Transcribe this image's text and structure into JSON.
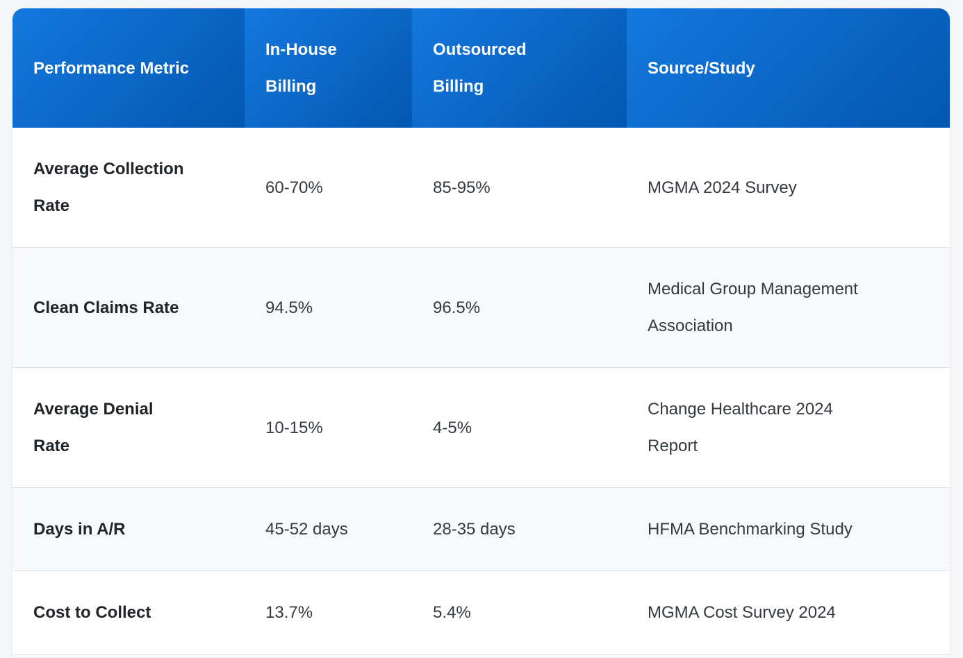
{
  "table": {
    "columns": [
      {
        "label": "Performance Metric"
      },
      {
        "label": "In-House\nBilling"
      },
      {
        "label": "Outsourced\nBilling"
      },
      {
        "label": "Source/Study"
      }
    ],
    "rows": [
      {
        "metric": "Average Collection\nRate",
        "in_house": "60-70%",
        "outsourced": "85-95%",
        "source": "MGMA 2024 Survey"
      },
      {
        "metric": "Clean Claims Rate",
        "in_house": "94.5%",
        "outsourced": "96.5%",
        "source": "Medical Group Management\nAssociation"
      },
      {
        "metric": "Average Denial\nRate",
        "in_house": "10-15%",
        "outsourced": "4-5%",
        "source": "Change Healthcare 2024\nReport"
      },
      {
        "metric": "Days in A/R",
        "in_house": "45-52 days",
        "outsourced": "28-35 days",
        "source": "HFMA Benchmarking Study"
      },
      {
        "metric": "Cost to Collect",
        "in_house": "13.7%",
        "outsourced": "5.4%",
        "source": "MGMA Cost Survey 2024"
      }
    ]
  },
  "colors": {
    "header_gradient_start": "#1478de",
    "header_gradient_end": "#0457b0",
    "header_text": "#ffffff",
    "row_background": "#ffffff",
    "row_alt_background": "#f8f9fa",
    "row_border": "#dee2e6",
    "metric_text": "#212529",
    "value_text": "#343a40",
    "page_background": "#f5f6f8"
  }
}
